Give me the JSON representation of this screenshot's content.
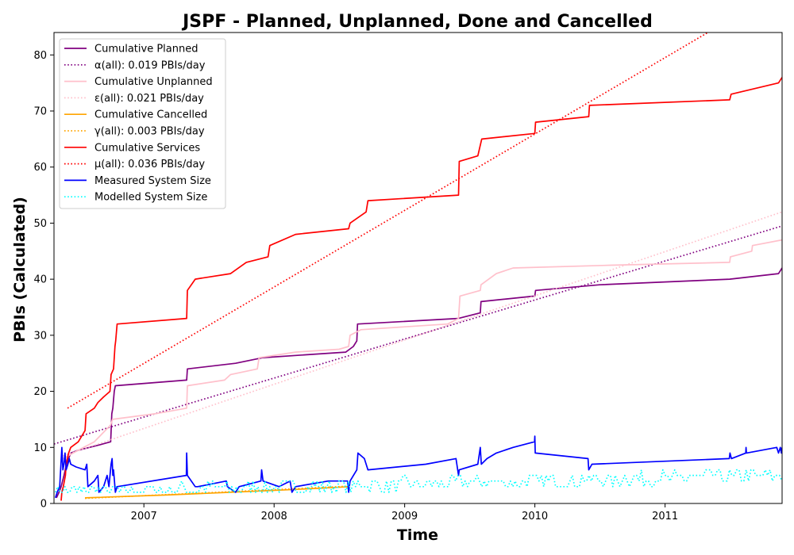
{
  "chart_data": {
    "type": "line",
    "title": "JSPF - Planned, Unplanned, Done  and Cancelled",
    "xlabel": "Time",
    "ylabel": "PBIs (Calculated)",
    "xlim": [
      "2006-04-24",
      "2011-11-25"
    ],
    "ylim": [
      0,
      84
    ],
    "x_ticks": [
      "2007",
      "2008",
      "2009",
      "2010",
      "2011"
    ],
    "x_tick_dates": [
      "2007-01-01",
      "2008-01-01",
      "2009-01-01",
      "2010-01-01",
      "2011-01-01"
    ],
    "y_ticks": [
      0,
      10,
      20,
      30,
      40,
      50,
      60,
      70,
      80
    ],
    "grid": false,
    "legend_position": "top-left",
    "series": [
      {
        "name": "Cumulative Planned",
        "color": "#800080",
        "style": "solid",
        "points": [
          [
            "2006-05-01",
            1
          ],
          [
            "2006-05-08",
            2
          ],
          [
            "2006-05-14",
            3
          ],
          [
            "2006-05-22",
            5
          ],
          [
            "2006-05-29",
            7
          ],
          [
            "2006-06-04",
            8
          ],
          [
            "2006-06-10",
            9
          ],
          [
            "2006-07-01",
            9.5
          ],
          [
            "2006-08-01",
            10
          ],
          [
            "2006-09-01",
            10.5
          ],
          [
            "2006-09-30",
            11
          ],
          [
            "2006-10-03",
            16
          ],
          [
            "2006-10-06",
            17
          ],
          [
            "2006-10-10",
            20
          ],
          [
            "2006-10-13",
            21
          ],
          [
            "2007-05-01",
            22
          ],
          [
            "2007-05-03",
            24
          ],
          [
            "2007-09-15",
            25
          ],
          [
            "2007-12-01",
            26
          ],
          [
            "2008-07-20",
            27
          ],
          [
            "2008-08-10",
            28
          ],
          [
            "2008-08-20",
            29
          ],
          [
            "2008-08-22",
            32
          ],
          [
            "2009-06-01",
            33
          ],
          [
            "2009-08-01",
            34
          ],
          [
            "2009-08-03",
            36
          ],
          [
            "2010-01-01",
            37
          ],
          [
            "2010-01-03",
            38
          ],
          [
            "2010-07-01",
            39
          ],
          [
            "2011-07-01",
            40
          ],
          [
            "2011-11-15",
            41
          ],
          [
            "2011-11-25",
            42
          ]
        ]
      },
      {
        "name": "α(all): 0.019 PBIs/day",
        "color": "#800080",
        "style": "dotted",
        "points": [
          [
            "2006-04-24",
            10.6
          ],
          [
            "2011-11-25",
            49.5
          ]
        ]
      },
      {
        "name": "Cumulative Unplanned",
        "color": "#ffc0cb",
        "style": "solid",
        "points": [
          [
            "2006-05-20",
            8
          ],
          [
            "2006-07-01",
            9.5
          ],
          [
            "2006-08-15",
            11
          ],
          [
            "2006-09-30",
            14
          ],
          [
            "2006-10-05",
            15
          ],
          [
            "2007-02-01",
            16
          ],
          [
            "2007-05-01",
            17
          ],
          [
            "2007-05-03",
            21
          ],
          [
            "2007-08-15",
            22
          ],
          [
            "2007-09-01",
            23
          ],
          [
            "2007-11-15",
            24
          ],
          [
            "2007-11-20",
            26
          ],
          [
            "2008-03-01",
            27
          ],
          [
            "2008-07-01",
            27.5
          ],
          [
            "2008-07-28",
            28
          ],
          [
            "2008-08-01",
            30
          ],
          [
            "2008-09-01",
            31
          ],
          [
            "2009-05-01",
            32
          ],
          [
            "2009-06-01",
            33
          ],
          [
            "2009-06-05",
            37
          ],
          [
            "2009-08-01",
            38
          ],
          [
            "2009-08-03",
            39
          ],
          [
            "2009-09-15",
            41
          ],
          [
            "2009-11-01",
            42
          ],
          [
            "2010-08-01",
            42.5
          ],
          [
            "2011-07-01",
            43
          ],
          [
            "2011-07-03",
            44
          ],
          [
            "2011-09-01",
            45
          ],
          [
            "2011-09-03",
            46
          ],
          [
            "2011-11-25",
            47
          ]
        ]
      },
      {
        "name": "ε(all): 0.021 PBIs/day",
        "color": "#ffc0cb",
        "style": "dotted",
        "points": [
          [
            "2006-05-20",
            8.5
          ],
          [
            "2011-11-25",
            52
          ]
        ]
      },
      {
        "name": "Cumulative Cancelled",
        "color": "#ffa500",
        "style": "solid",
        "points": [
          [
            "2006-07-20",
            1
          ],
          [
            "2007-03-01",
            1.5
          ],
          [
            "2007-09-01",
            2
          ],
          [
            "2008-03-01",
            2.5
          ],
          [
            "2008-08-01",
            3
          ]
        ]
      },
      {
        "name": "γ(all): 0.003 PBIs/day",
        "color": "#ffa500",
        "style": "dotted",
        "points": [
          [
            "2006-07-20",
            0.9
          ],
          [
            "2008-08-01",
            3.1
          ]
        ]
      },
      {
        "name": "Cumulative Services",
        "color": "#ff0000",
        "style": "solid",
        "points": [
          [
            "2006-05-14",
            0.5
          ],
          [
            "2006-05-16",
            2
          ],
          [
            "2006-05-20",
            3
          ],
          [
            "2006-05-26",
            5
          ],
          [
            "2006-05-28",
            7
          ],
          [
            "2006-06-04",
            9
          ],
          [
            "2006-06-10",
            10
          ],
          [
            "2006-07-01",
            11
          ],
          [
            "2006-07-20",
            13
          ],
          [
            "2006-07-23",
            16
          ],
          [
            "2006-08-15",
            17
          ],
          [
            "2006-08-25",
            18
          ],
          [
            "2006-09-10",
            19
          ],
          [
            "2006-09-28",
            20
          ],
          [
            "2006-10-01",
            23
          ],
          [
            "2006-10-08",
            24
          ],
          [
            "2006-10-12",
            28
          ],
          [
            "2006-10-14",
            29
          ],
          [
            "2006-10-18",
            32
          ],
          [
            "2007-05-01",
            33
          ],
          [
            "2007-05-03",
            38
          ],
          [
            "2007-05-25",
            40
          ],
          [
            "2007-09-01",
            41
          ],
          [
            "2007-10-15",
            43
          ],
          [
            "2007-12-15",
            44
          ],
          [
            "2007-12-20",
            46
          ],
          [
            "2008-03-01",
            48
          ],
          [
            "2008-07-28",
            49
          ],
          [
            "2008-08-01",
            50
          ],
          [
            "2008-09-15",
            52
          ],
          [
            "2008-09-20",
            54
          ],
          [
            "2009-06-01",
            55
          ],
          [
            "2009-06-03",
            61
          ],
          [
            "2009-07-25",
            62
          ],
          [
            "2009-08-05",
            65
          ],
          [
            "2010-01-01",
            66
          ],
          [
            "2010-01-03",
            68
          ],
          [
            "2010-06-01",
            69
          ],
          [
            "2010-06-03",
            71
          ],
          [
            "2011-07-01",
            72
          ],
          [
            "2011-07-05",
            73
          ],
          [
            "2011-11-15",
            75
          ],
          [
            "2011-11-25",
            76
          ]
        ]
      },
      {
        "name": "μ(all): 0.036 PBIs/day",
        "color": "#ff0000",
        "style": "dotted",
        "points": [
          [
            "2006-06-01",
            17
          ],
          [
            "2011-05-01",
            84
          ]
        ]
      },
      {
        "name": "Measured System Size",
        "color": "#0000ff",
        "style": "solid",
        "points": [
          [
            "2006-04-28",
            1
          ],
          [
            "2006-05-03",
            2
          ],
          [
            "2006-05-10",
            3
          ],
          [
            "2006-05-16",
            10
          ],
          [
            "2006-05-19",
            6
          ],
          [
            "2006-05-22",
            7
          ],
          [
            "2006-05-25",
            9
          ],
          [
            "2006-05-28",
            6
          ],
          [
            "2006-06-02",
            7
          ],
          [
            "2006-06-06",
            8
          ],
          [
            "2006-06-10",
            7
          ],
          [
            "2006-06-25",
            6.5
          ],
          [
            "2006-07-20",
            6
          ],
          [
            "2006-07-25",
            7
          ],
          [
            "2006-07-28",
            3
          ],
          [
            "2006-08-15",
            4
          ],
          [
            "2006-08-25",
            5
          ],
          [
            "2006-08-28",
            2
          ],
          [
            "2006-09-10",
            3
          ],
          [
            "2006-09-20",
            5
          ],
          [
            "2006-09-25",
            3
          ],
          [
            "2006-10-01",
            7
          ],
          [
            "2006-10-04",
            8
          ],
          [
            "2006-10-06",
            5
          ],
          [
            "2006-10-08",
            6
          ],
          [
            "2006-10-13",
            2
          ],
          [
            "2006-10-18",
            3
          ],
          [
            "2007-04-30",
            5
          ],
          [
            "2007-05-01",
            9
          ],
          [
            "2007-05-03",
            5
          ],
          [
            "2007-05-25",
            3
          ],
          [
            "2007-06-01",
            3
          ],
          [
            "2007-08-20",
            4
          ],
          [
            "2007-08-23",
            3
          ],
          [
            "2007-09-15",
            2
          ],
          [
            "2007-09-25",
            3
          ],
          [
            "2007-11-25",
            4
          ],
          [
            "2007-11-27",
            6
          ],
          [
            "2007-12-01",
            4
          ],
          [
            "2008-01-15",
            3
          ],
          [
            "2008-02-15",
            4
          ],
          [
            "2008-02-20",
            2
          ],
          [
            "2008-03-01",
            3
          ],
          [
            "2008-06-01",
            4
          ],
          [
            "2008-07-25",
            4
          ],
          [
            "2008-07-28",
            2
          ],
          [
            "2008-08-01",
            4
          ],
          [
            "2008-08-20",
            6
          ],
          [
            "2008-08-23",
            9
          ],
          [
            "2008-09-10",
            8
          ],
          [
            "2008-09-20",
            6
          ],
          [
            "2009-03-01",
            7
          ],
          [
            "2009-05-25",
            8
          ],
          [
            "2009-06-01",
            5
          ],
          [
            "2009-06-03",
            6
          ],
          [
            "2009-07-25",
            7
          ],
          [
            "2009-08-01",
            10
          ],
          [
            "2009-08-04",
            7
          ],
          [
            "2009-08-20",
            8
          ],
          [
            "2009-09-15",
            9
          ],
          [
            "2009-11-01",
            10
          ],
          [
            "2009-12-31",
            11
          ],
          [
            "2010-01-01",
            12
          ],
          [
            "2010-01-02",
            9
          ],
          [
            "2010-05-30",
            8
          ],
          [
            "2010-06-01",
            6
          ],
          [
            "2010-06-10",
            7
          ],
          [
            "2011-06-30",
            8
          ],
          [
            "2011-07-02",
            9
          ],
          [
            "2011-07-06",
            8
          ],
          [
            "2011-08-15",
            9
          ],
          [
            "2011-08-16",
            10
          ],
          [
            "2011-08-17",
            9
          ],
          [
            "2011-11-10",
            10
          ],
          [
            "2011-11-15",
            9
          ],
          [
            "2011-11-20",
            10
          ],
          [
            "2011-11-23",
            9
          ],
          [
            "2011-11-25",
            10
          ]
        ]
      },
      {
        "name": "Modelled System Size",
        "color": "#00ffff",
        "style": "dotted",
        "noise": [
          3,
          6
        ],
        "points": [
          [
            "2006-04-28",
            2
          ],
          [
            "2011-11-25",
            5
          ]
        ]
      }
    ]
  }
}
